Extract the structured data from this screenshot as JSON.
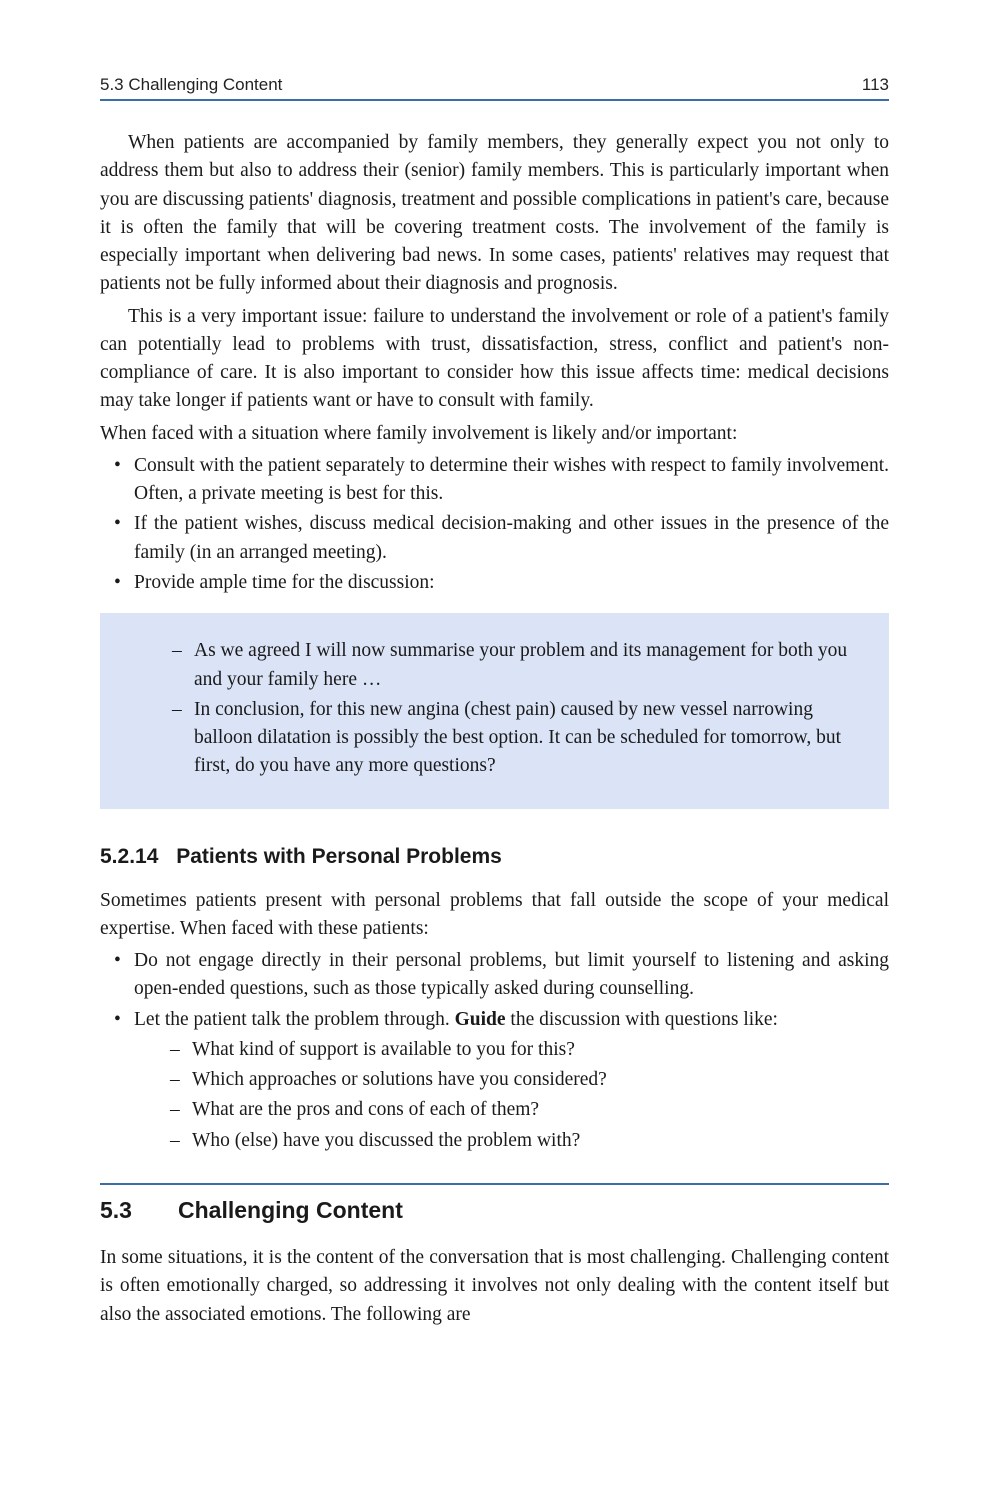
{
  "header": {
    "left": "5.3   Challenging Content",
    "page_number": "113"
  },
  "body": {
    "p1": "When patients are accompanied by family members, they generally expect you not only to address them but also to address their (senior) family members. This is particularly important when you are discussing patients' diagnosis, treatment and possible complications in patient's care, because it is often the family that will be covering treatment costs. The involvement of the family is especially important when delivering bad news. In some cases, patients' relatives may request that patients not be fully informed about their diagnosis and prognosis.",
    "p2": "This is a very important issue: failure to understand the involvement or role of a patient's family can potentially lead to problems with trust, dissatisfaction, stress, conflict and patient's non-compliance of care. It is also important to consider how this issue affects time: medical decisions may take longer if patients want or have to consult with family.",
    "p3": "When faced with a situation where family involvement is likely and/or important:",
    "bullets1": [
      "Consult with the patient separately to determine their wishes with respect to family involvement. Often, a private meeting is best for this.",
      "If the patient wishes, discuss medical decision-making and other issues in the presence of the family (in an arranged meeting).",
      "Provide ample time for the discussion:"
    ],
    "callout_dashes": [
      "As we agreed I will now summarise your problem and its management for both you and your family here …",
      "In conclusion, for this new angina (chest pain) caused by new vessel narrowing balloon dilatation is possibly the best option. It can be scheduled for tomorrow, but first, do you have any more questions?"
    ],
    "sub1": {
      "num": "5.2.14",
      "title": "Patients with Personal Problems"
    },
    "p4": "Sometimes patients present with personal problems that fall outside the scope of your medical expertise. When faced with these patients:",
    "bullets2_item1": "Do not engage directly in their personal problems, but limit yourself to listening and asking open-ended questions, such as those typically asked during counselling.",
    "bullets2_item2_pre": "Let the patient talk the problem through. ",
    "bullets2_item2_bold": "Guide",
    "bullets2_item2_post": " the discussion with questions like:",
    "dashes2": [
      "What kind of support is available to you for this?",
      "Which approaches or solutions have you considered?",
      "What are the pros and cons of each of them?",
      "Who (else) have you discussed the problem with?"
    ],
    "section": {
      "num": "5.3",
      "title": "Challenging Content"
    },
    "p5": "In some situations, it is the content of the conversation that is most challenging. Challenging content is often emotionally charged, so addressing it involves not only dealing with the content itself but also the associated emotions. The following are"
  },
  "style": {
    "rule_color": "#3a6ea5",
    "callout_bg": "#dbe3f6",
    "body_font_size_pt": 15,
    "heading_font_family": "Arial"
  }
}
